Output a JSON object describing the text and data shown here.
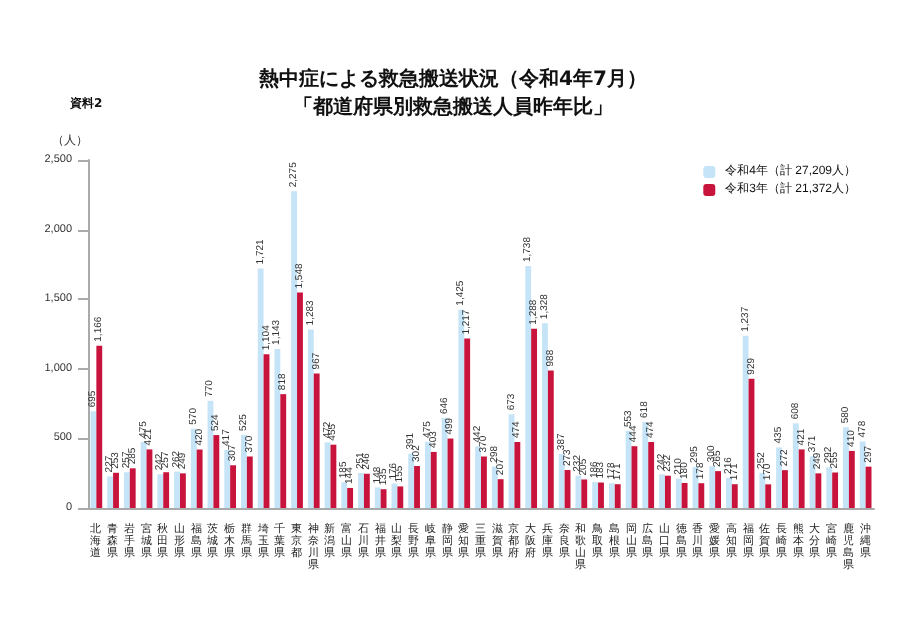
{
  "chart_data": {
    "type": "bar",
    "title": "熱中症による救急搬送状況（令和4年7月）",
    "subtitle": "「都道府県別救急搬送人員昨年比」",
    "ylabel": "（人）",
    "annotations": [
      "資料2"
    ],
    "categories": [
      "北海道",
      "青森県",
      "岩手県",
      "宮城県",
      "秋田県",
      "山形県",
      "福島県",
      "茨城県",
      "栃木県",
      "群馬県",
      "埼玉県",
      "千葉県",
      "東京都",
      "神奈川県",
      "新潟県",
      "富山県",
      "石川県",
      "福井県",
      "山梨県",
      "長野県",
      "岐阜県",
      "静岡県",
      "愛知県",
      "三重県",
      "滋賀県",
      "京都府",
      "大阪府",
      "兵庫県",
      "奈良県",
      "和歌山県",
      "鳥取県",
      "島根県",
      "岡山県",
      "広島県",
      "山口県",
      "徳島県",
      "香川県",
      "愛媛県",
      "高知県",
      "福岡県",
      "佐賀県",
      "長崎県",
      "熊本県",
      "大分県",
      "宮崎県",
      "鹿児島県",
      "沖縄県"
    ],
    "series": [
      {
        "name": "令和4年（計 27,209人）",
        "color": "#c5e4f7",
        "values": [
          695,
          227,
          257,
          475,
          242,
          262,
          570,
          770,
          417,
          525,
          1721,
          1143,
          2275,
          1283,
          472,
          185,
          251,
          148,
          176,
          391,
          475,
          646,
          1425,
          442,
          298,
          673,
          1738,
          1328,
          387,
          232,
          186,
          178,
          553,
          618,
          242,
          210,
          295,
          300,
          216,
          1237,
          252,
          435,
          608,
          371,
          292,
          580,
          478
        ],
        "value_labels": [
          "695",
          "227",
          "257",
          "475",
          "242",
          "262",
          "570",
          "770",
          "417",
          "525",
          "1,721",
          "1,143",
          "2,275",
          "1,283",
          "472",
          "185",
          "251",
          "148",
          "176",
          "391",
          "475",
          "646",
          "1,425",
          "442",
          "298",
          "673",
          "1,738",
          "1,328",
          "387",
          "232",
          "186",
          "178",
          "553",
          "618",
          "242",
          "210",
          "295",
          "300",
          "216",
          "1,237",
          "252",
          "435",
          "608",
          "371",
          "292",
          "580",
          "478"
        ]
      },
      {
        "name": "令和3年（計 21,372人）",
        "color": "#c8143c",
        "values": [
          1166,
          253,
          285,
          421,
          257,
          249,
          420,
          524,
          307,
          370,
          1104,
          818,
          1548,
          967,
          455,
          144,
          246,
          135,
          155,
          302,
          403,
          499,
          1217,
          370,
          207,
          474,
          1288,
          988,
          273,
          205,
          183,
          171,
          444,
          474,
          232,
          180,
          178,
          265,
          171,
          929,
          170,
          272,
          421,
          249,
          255,
          410,
          297
        ],
        "value_labels": [
          "1,166",
          "253",
          "285",
          "421",
          "257",
          "249",
          "420",
          "524",
          "307",
          "370",
          "1,104",
          "818",
          "1,548",
          "967",
          "455",
          "144",
          "246",
          "135",
          "155",
          "302",
          "403",
          "499",
          "1,217",
          "370",
          "207",
          "474",
          "1,288",
          "988",
          "273",
          "205",
          "183",
          "171",
          "444",
          "474",
          "232",
          "180",
          "178",
          "265",
          "171",
          "929",
          "170",
          "272",
          "421",
          "249",
          "255",
          "410",
          "297"
        ]
      }
    ],
    "ylim": [
      0,
      2500
    ],
    "yticks": [
      0,
      500,
      {
        "value": 1000,
        "label": "1,000"
      },
      {
        "value": 1500,
        "label": "1,500"
      },
      {
        "value": 2000,
        "label": "2,000"
      },
      {
        "value": 2500,
        "label": "2,500"
      }
    ],
    "grid": false,
    "legend": "top right"
  }
}
